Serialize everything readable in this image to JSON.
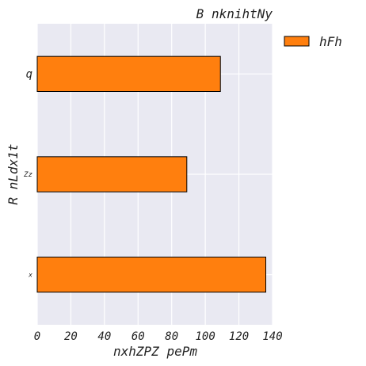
{
  "chart_data": {
    "type": "bar",
    "orientation": "horizontal",
    "title": "B  nknihtNy",
    "xlabel": "nxhZPZ pePm",
    "ylabel": "R nLdx1t",
    "categories": [
      "x",
      "Zz",
      "q"
    ],
    "series": [
      {
        "name": "hFh",
        "values": [
          136,
          89,
          109
        ],
        "color": "#ff7f0e"
      }
    ],
    "xlim": [
      0,
      140
    ],
    "xticks": [
      0,
      20,
      40,
      60,
      80,
      100,
      120,
      140
    ],
    "grid": true,
    "legend_position": "outside-top-right",
    "background_color": "#e9e9f2",
    "edge_color": "#000000"
  }
}
